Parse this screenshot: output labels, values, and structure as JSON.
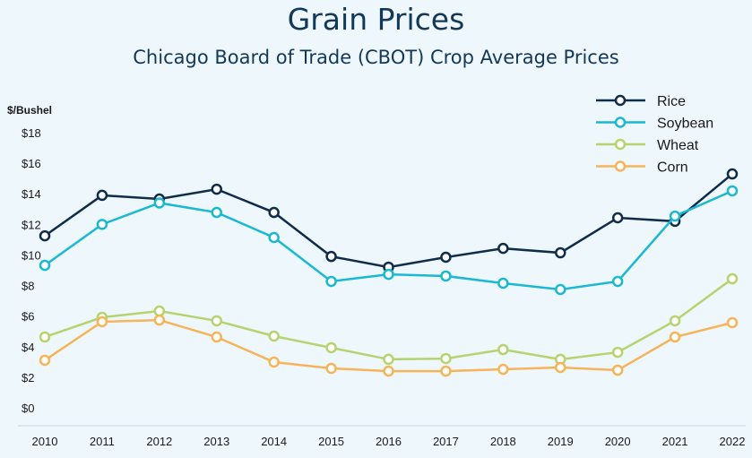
{
  "chart_data": {
    "type": "line",
    "title": "Grain Prices",
    "subtitle": "Chicago Board of Trade (CBOT) Crop Average Prices",
    "xlabel": "",
    "ylabel": "$/Bushel",
    "ylim": [
      0,
      18
    ],
    "yticks": [
      "$0",
      "$2",
      "$4",
      "$6",
      "$8",
      "$10",
      "$12",
      "$14",
      "$16",
      "$18"
    ],
    "x": [
      "2010",
      "2011",
      "2012",
      "2013",
      "2014",
      "2015",
      "2016",
      "2017",
      "2018",
      "2019",
      "2020",
      "2021",
      "2022"
    ],
    "legend_position": "top-right",
    "series": [
      {
        "name": "Rice",
        "color": "#0f2d4a",
        "values": [
          11.25,
          13.9,
          13.66,
          14.3,
          12.78,
          9.9,
          9.2,
          9.85,
          10.43,
          10.14,
          12.43,
          12.2,
          15.3
        ]
      },
      {
        "name": "Soybean",
        "color": "#1ab8d2",
        "values": [
          9.32,
          12.0,
          13.4,
          12.78,
          11.14,
          8.27,
          8.73,
          8.62,
          8.15,
          7.74,
          8.27,
          12.54,
          14.19
        ]
      },
      {
        "name": "Wheat",
        "color": "#b5d36e",
        "values": [
          4.63,
          5.92,
          6.33,
          5.69,
          4.69,
          3.93,
          3.17,
          3.22,
          3.81,
          3.17,
          3.63,
          5.69,
          8.44
        ]
      },
      {
        "name": "Corn",
        "color": "#f6b45a",
        "values": [
          3.11,
          5.63,
          5.74,
          4.63,
          2.99,
          2.58,
          2.4,
          2.4,
          2.52,
          2.64,
          2.46,
          4.63,
          5.57
        ]
      }
    ]
  }
}
